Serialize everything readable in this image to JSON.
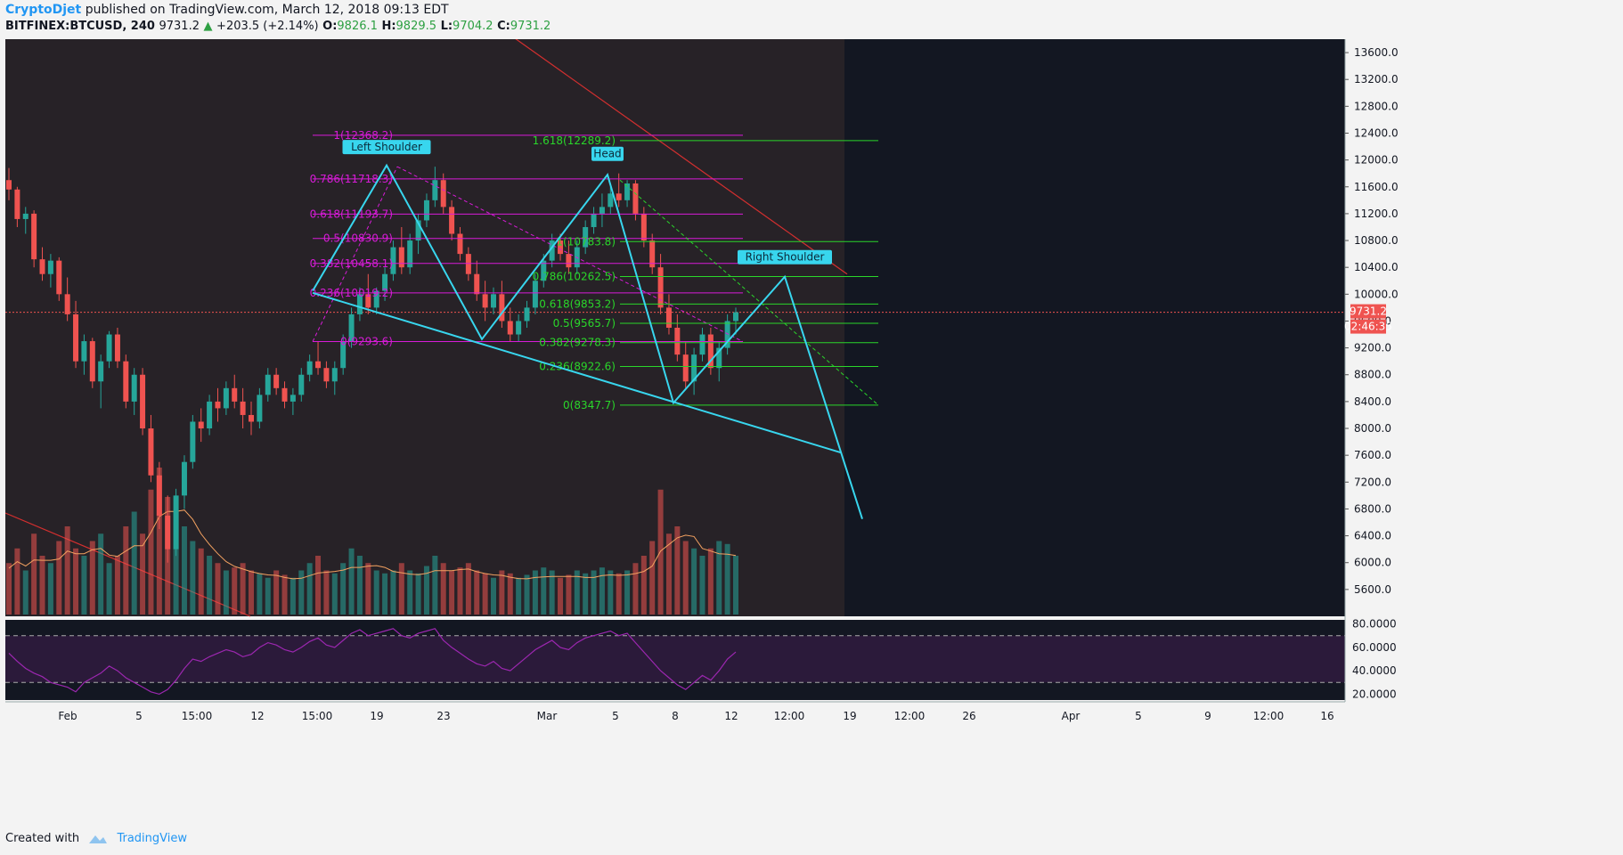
{
  "header": {
    "author": "CryptoDjet",
    "published": " published on TradingView.com, March 12, 2018 09:13 EDT",
    "symbol": "BITFINEX:BTCUSD, 240",
    "last": "9731.2",
    "change": "+203.5 (+2.14%)",
    "o_label": "O:",
    "o": "9826.1",
    "h_label": "H:",
    "h": "9829.5",
    "l_label": "L:",
    "l": "9704.2",
    "c_label": "C:",
    "c": "9731.2"
  },
  "footer": {
    "created_with": "Created with",
    "brand": "TradingView"
  },
  "colors": {
    "background": "#131722",
    "shade": "#2a2428",
    "up": "#26a69a",
    "down": "#ef5350",
    "pattern": "#38d6ee",
    "fib_left": "#d81bd8",
    "fib_right": "#2ad62a",
    "trend": "#d32f2f",
    "rsi": "#9c27b0",
    "volume_ma": "#f4a261"
  },
  "chart_data": {
    "type": "candlestick",
    "title": "BITFINEX:BTCUSD, 240",
    "y_axis": {
      "ylim": [
        5200,
        13800
      ],
      "ticks": [
        "13600.0",
        "13200.0",
        "12800.0",
        "12400.0",
        "12000.0",
        "11600.0",
        "11200.0",
        "10800.0",
        "10400.0",
        "10000.0",
        "9600.0",
        "9200.0",
        "8800.0",
        "8400.0",
        "8000.0",
        "7600.0",
        "7200.0",
        "6800.0",
        "6400.0",
        "6000.0",
        "5600.0"
      ],
      "price_tag": "9731.2",
      "countdown": "02:46:35"
    },
    "x_axis": {
      "ticks": [
        "Feb",
        "5",
        "15:00",
        "12",
        "15:00",
        "19",
        "23",
        "Mar",
        "5",
        "8",
        "12",
        "12:00",
        "19",
        "12:00",
        "26",
        "Apr",
        "5",
        "9",
        "12:00",
        "16"
      ]
    },
    "rsi": {
      "ylim": [
        15,
        85
      ],
      "ticks": [
        "80.0000",
        "60.0000",
        "40.0000",
        "20.0000"
      ],
      "bands": [
        70,
        30
      ]
    },
    "fib_left": [
      {
        "label": "1(12368.2)",
        "price": 12368.2
      },
      {
        "label": "0.786(11718.3)",
        "price": 11718.3
      },
      {
        "label": "0.618(11193.7)",
        "price": 11193.7
      },
      {
        "label": "0.5(10830.9)",
        "price": 10830.9
      },
      {
        "label": "0.382(10458.1)",
        "price": 10458.1
      },
      {
        "label": "0.236(10019.2)",
        "price": 10019.2
      },
      {
        "label": "0(9293.6)",
        "price": 9293.6
      }
    ],
    "fib_right": [
      {
        "label": "1.618(12289.2)",
        "price": 12289.2
      },
      {
        "label": "1(10783.8)",
        "price": 10783.8
      },
      {
        "label": "0.786(10262.5)",
        "price": 10262.5
      },
      {
        "label": "0.618(9853.2)",
        "price": 9853.2
      },
      {
        "label": "0.5(9565.7)",
        "price": 9565.7
      },
      {
        "label": "0.382(9278.3)",
        "price": 9278.3
      },
      {
        "label": "0.236(8922.6)",
        "price": 8922.6
      },
      {
        "label": "0(8347.7)",
        "price": 8347.7
      }
    ],
    "annotations": [
      {
        "text": "Left Shoulder",
        "price": 11900
      },
      {
        "text": "Head",
        "price": 11800
      },
      {
        "text": "Right Shoulder",
        "price": 10260
      }
    ],
    "pattern_path_prices": [
      10050,
      11920,
      9330,
      11780,
      8380,
      10260,
      6650
    ],
    "neckline_prices": [
      10020,
      7640
    ],
    "trendline_prices": [
      12300,
      10300
    ],
    "candles": [
      [
        11700,
        11880,
        11400,
        11560
      ],
      [
        11560,
        11600,
        11000,
        11120
      ],
      [
        11120,
        11300,
        10900,
        11200
      ],
      [
        11200,
        11250,
        10400,
        10520
      ],
      [
        10520,
        10700,
        10200,
        10300
      ],
      [
        10300,
        10600,
        10100,
        10500
      ],
      [
        10500,
        10550,
        9900,
        10000
      ],
      [
        10000,
        10250,
        9600,
        9700
      ],
      [
        9700,
        9900,
        8900,
        9000
      ],
      [
        9000,
        9400,
        8800,
        9300
      ],
      [
        9300,
        9350,
        8600,
        8700
      ],
      [
        8700,
        9100,
        8300,
        9000
      ],
      [
        9000,
        9450,
        8900,
        9400
      ],
      [
        9400,
        9500,
        8900,
        9000
      ],
      [
        9000,
        9100,
        8300,
        8400
      ],
      [
        8400,
        8900,
        8200,
        8800
      ],
      [
        8800,
        8900,
        7900,
        8000
      ],
      [
        8000,
        8200,
        7200,
        7300
      ],
      [
        7300,
        7500,
        6500,
        6700
      ],
      [
        6700,
        7000,
        6000,
        6200
      ],
      [
        6200,
        7100,
        6100,
        7000
      ],
      [
        7000,
        7600,
        6800,
        7500
      ],
      [
        7500,
        8200,
        7400,
        8100
      ],
      [
        8100,
        8300,
        7800,
        8000
      ],
      [
        8000,
        8500,
        7900,
        8400
      ],
      [
        8400,
        8600,
        8100,
        8300
      ],
      [
        8300,
        8700,
        8200,
        8600
      ],
      [
        8600,
        8800,
        8300,
        8400
      ],
      [
        8400,
        8600,
        8000,
        8200
      ],
      [
        8200,
        8400,
        7900,
        8100
      ],
      [
        8100,
        8600,
        8000,
        8500
      ],
      [
        8500,
        8900,
        8400,
        8800
      ],
      [
        8800,
        8900,
        8500,
        8600
      ],
      [
        8600,
        8700,
        8300,
        8400
      ],
      [
        8400,
        8600,
        8200,
        8500
      ],
      [
        8500,
        8900,
        8400,
        8800
      ],
      [
        8800,
        9100,
        8700,
        9000
      ],
      [
        9000,
        9300,
        8800,
        8900
      ],
      [
        8900,
        9000,
        8600,
        8700
      ],
      [
        8700,
        9000,
        8500,
        8900
      ],
      [
        8900,
        9400,
        8800,
        9300
      ],
      [
        9300,
        9800,
        9200,
        9700
      ],
      [
        9700,
        10100,
        9600,
        10000
      ],
      [
        10000,
        10300,
        9700,
        9800
      ],
      [
        9800,
        10100,
        9700,
        10050
      ],
      [
        10050,
        10400,
        9900,
        10300
      ],
      [
        10300,
        10800,
        10200,
        10700
      ],
      [
        10700,
        11000,
        10300,
        10400
      ],
      [
        10400,
        10900,
        10300,
        10800
      ],
      [
        10800,
        11200,
        10600,
        11100
      ],
      [
        11100,
        11500,
        11000,
        11400
      ],
      [
        11400,
        11900,
        11300,
        11700
      ],
      [
        11700,
        11800,
        11200,
        11300
      ],
      [
        11300,
        11400,
        10800,
        10900
      ],
      [
        10900,
        11000,
        10500,
        10600
      ],
      [
        10600,
        10700,
        10200,
        10300
      ],
      [
        10300,
        10500,
        9900,
        10000
      ],
      [
        10000,
        10200,
        9600,
        9800
      ],
      [
        9800,
        10100,
        9700,
        10000
      ],
      [
        10000,
        10200,
        9500,
        9600
      ],
      [
        9600,
        9800,
        9300,
        9400
      ],
      [
        9400,
        9700,
        9300,
        9600
      ],
      [
        9600,
        9900,
        9500,
        9800
      ],
      [
        9800,
        10300,
        9700,
        10200
      ],
      [
        10200,
        10600,
        10100,
        10500
      ],
      [
        10500,
        10900,
        10400,
        10800
      ],
      [
        10800,
        10900,
        10500,
        10600
      ],
      [
        10600,
        10800,
        10300,
        10400
      ],
      [
        10400,
        10800,
        10300,
        10700
      ],
      [
        10700,
        11100,
        10600,
        11000
      ],
      [
        11000,
        11300,
        10900,
        11200
      ],
      [
        11200,
        11500,
        11000,
        11300
      ],
      [
        11300,
        11600,
        11200,
        11500
      ],
      [
        11500,
        11800,
        11300,
        11400
      ],
      [
        11400,
        11700,
        11300,
        11650
      ],
      [
        11650,
        11700,
        11100,
        11200
      ],
      [
        11200,
        11300,
        10700,
        10800
      ],
      [
        10800,
        10900,
        10300,
        10400
      ],
      [
        10400,
        10600,
        9700,
        9800
      ],
      [
        9800,
        10000,
        9400,
        9500
      ],
      [
        9500,
        9700,
        9000,
        9100
      ],
      [
        9100,
        9300,
        8600,
        8700
      ],
      [
        8700,
        9200,
        8500,
        9100
      ],
      [
        9100,
        9500,
        9000,
        9400
      ],
      [
        9400,
        9500,
        8800,
        8900
      ],
      [
        8900,
        9300,
        8700,
        9200
      ],
      [
        9200,
        9700,
        9100,
        9600
      ],
      [
        9600,
        9800,
        9400,
        9731
      ]
    ],
    "volume_rel": [
      0.35,
      0.45,
      0.3,
      0.55,
      0.4,
      0.35,
      0.5,
      0.6,
      0.45,
      0.4,
      0.5,
      0.55,
      0.35,
      0.4,
      0.6,
      0.7,
      0.55,
      0.85,
      1.0,
      0.8,
      0.7,
      0.6,
      0.5,
      0.45,
      0.4,
      0.35,
      0.3,
      0.32,
      0.35,
      0.3,
      0.28,
      0.25,
      0.3,
      0.27,
      0.25,
      0.3,
      0.35,
      0.4,
      0.3,
      0.28,
      0.35,
      0.45,
      0.4,
      0.35,
      0.3,
      0.28,
      0.3,
      0.35,
      0.3,
      0.28,
      0.33,
      0.4,
      0.35,
      0.3,
      0.32,
      0.35,
      0.3,
      0.28,
      0.25,
      0.3,
      0.28,
      0.25,
      0.27,
      0.3,
      0.32,
      0.3,
      0.25,
      0.27,
      0.3,
      0.28,
      0.3,
      0.32,
      0.3,
      0.28,
      0.3,
      0.35,
      0.4,
      0.5,
      0.85,
      0.55,
      0.6,
      0.5,
      0.45,
      0.4,
      0.45,
      0.5,
      0.48,
      0.4
    ],
    "rsi_values": [
      55,
      48,
      42,
      38,
      35,
      30,
      28,
      26,
      22,
      30,
      34,
      38,
      44,
      40,
      34,
      30,
      26,
      22,
      20,
      24,
      32,
      42,
      50,
      48,
      52,
      55,
      58,
      56,
      52,
      54,
      60,
      64,
      62,
      58,
      56,
      60,
      65,
      68,
      62,
      60,
      66,
      72,
      75,
      70,
      72,
      74,
      76,
      70,
      68,
      72,
      74,
      76,
      66,
      60,
      55,
      50,
      46,
      44,
      48,
      42,
      40,
      46,
      52,
      58,
      62,
      66,
      60,
      58,
      64,
      68,
      70,
      72,
      74,
      70,
      72,
      64,
      56,
      48,
      40,
      34,
      28,
      24,
      30,
      36,
      32,
      40,
      50,
      56
    ]
  }
}
